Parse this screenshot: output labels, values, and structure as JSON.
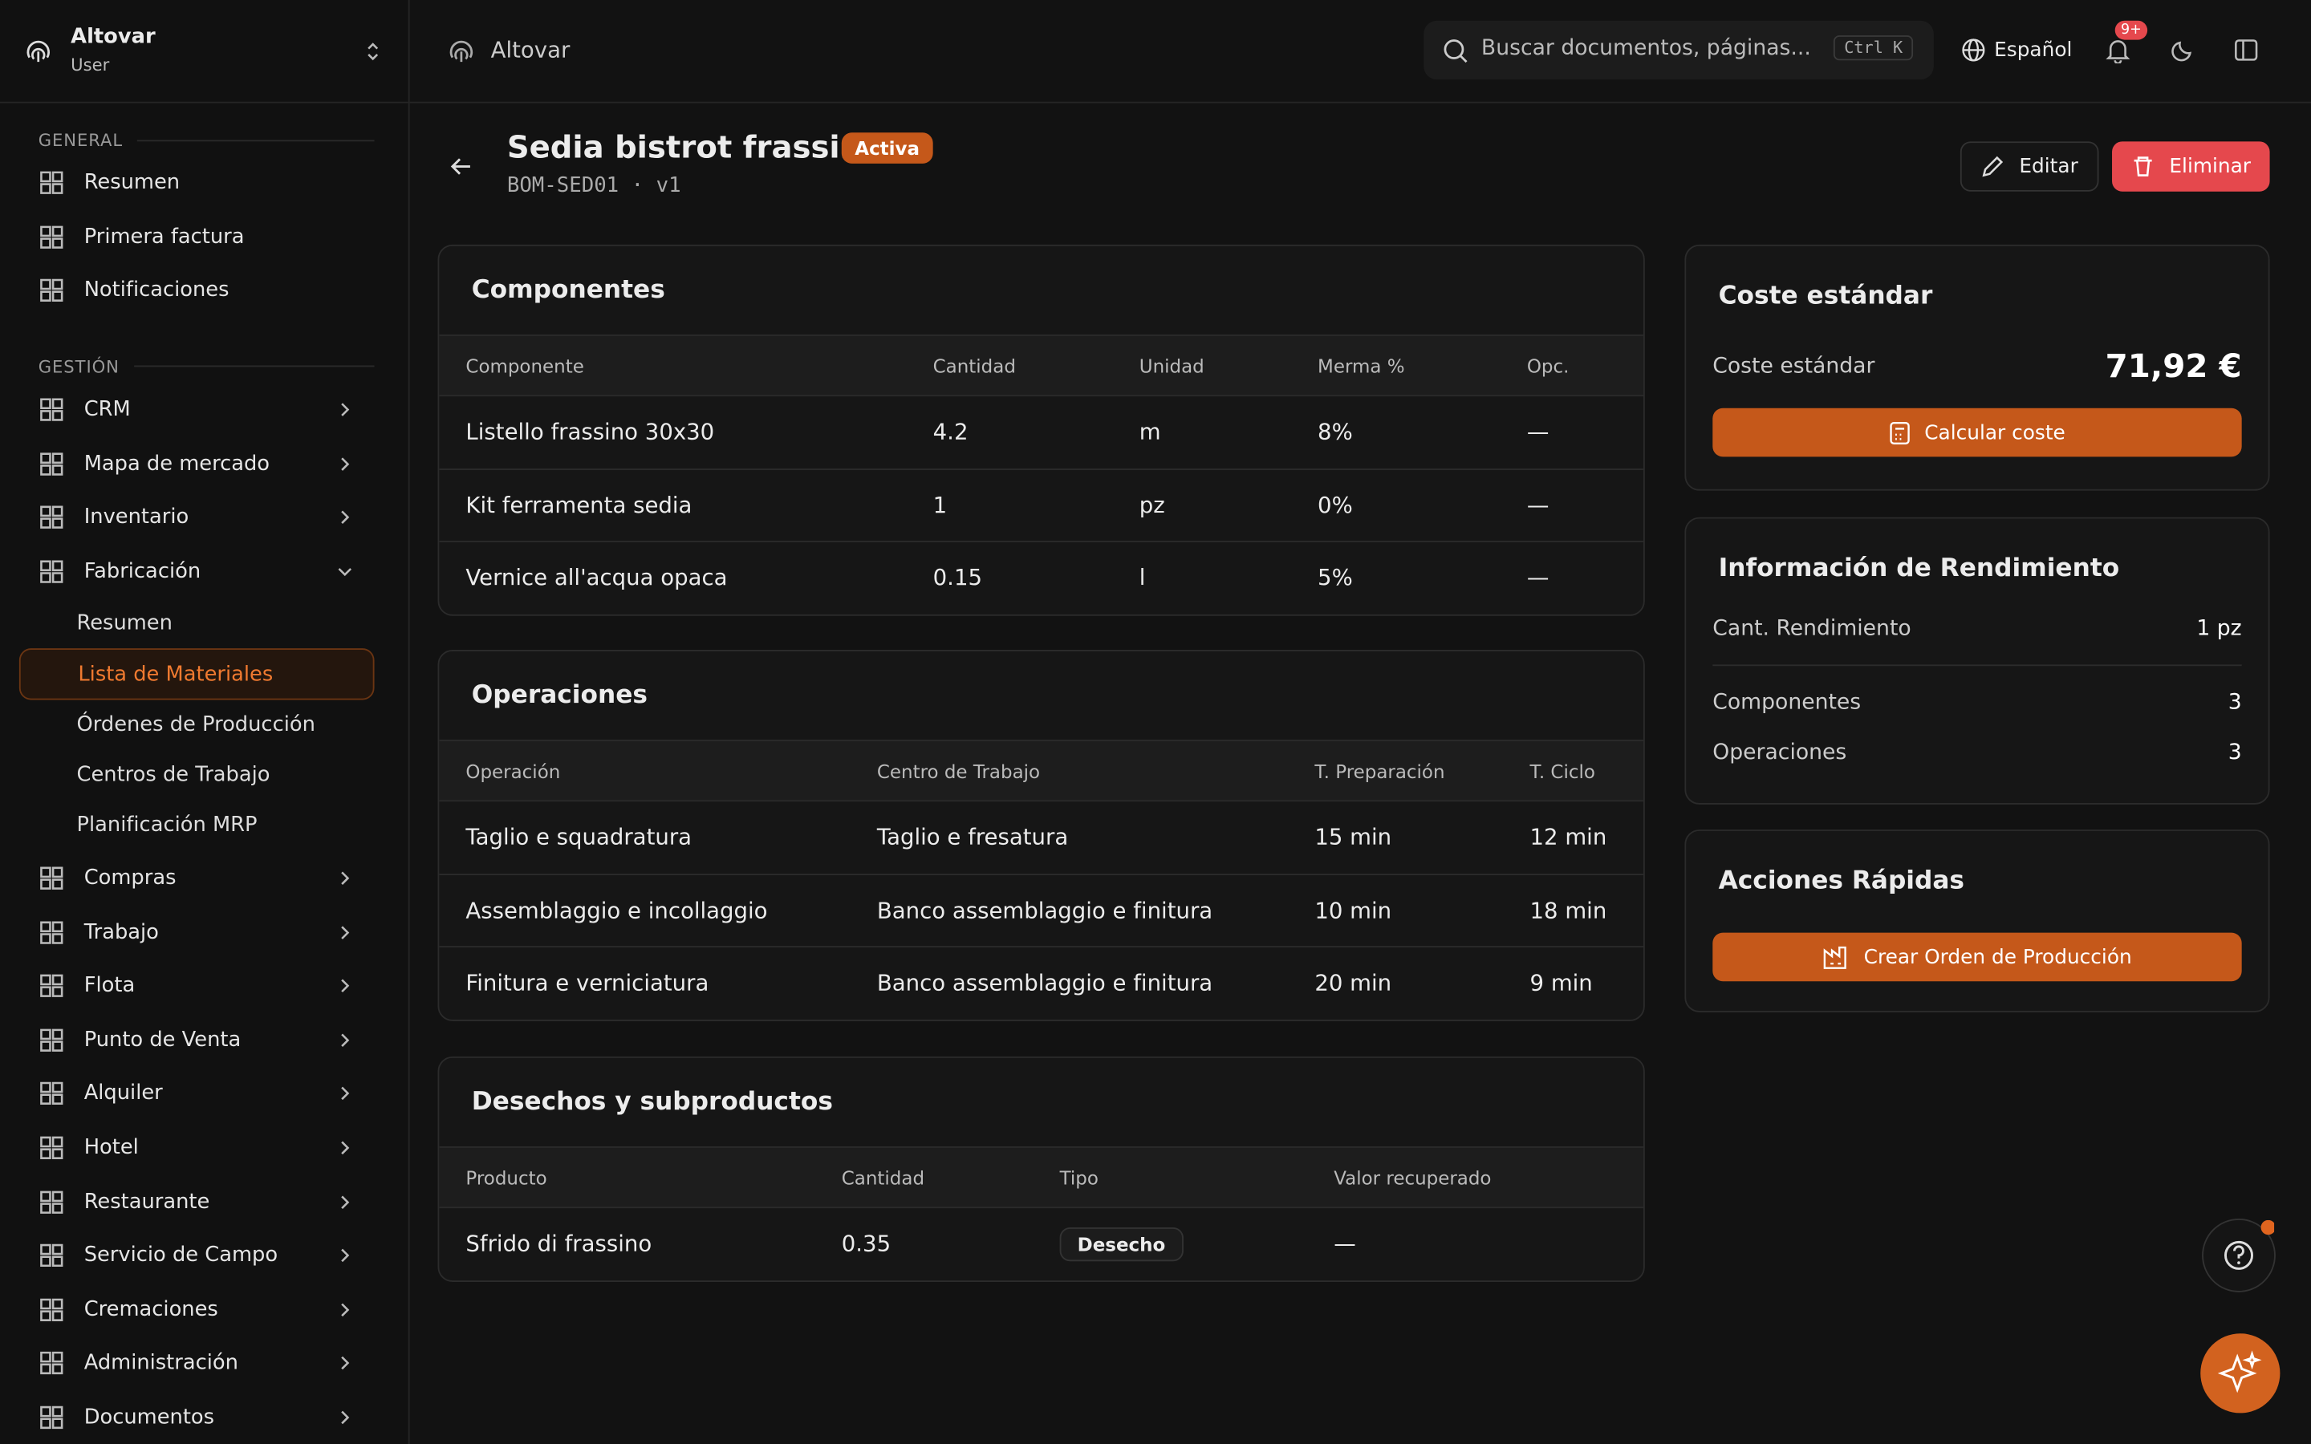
{
  "sidebar": {
    "org": "Altovar",
    "role": "User",
    "sections": [
      {
        "title": "GENERAL",
        "items": [
          {
            "label": "Resumen"
          },
          {
            "label": "Primera factura"
          },
          {
            "label": "Notificaciones"
          }
        ]
      },
      {
        "title": "GESTIÓN",
        "items": [
          {
            "label": "CRM"
          },
          {
            "label": "Mapa de mercado"
          },
          {
            "label": "Inventario"
          },
          {
            "label": "Fabricación",
            "children": [
              "Resumen",
              "Lista de Materiales",
              "Órdenes de Producción",
              "Centros de Trabajo",
              "Planificación MRP"
            ],
            "active_child": 1
          },
          {
            "label": "Compras"
          },
          {
            "label": "Trabajo"
          },
          {
            "label": "Flota"
          },
          {
            "label": "Punto de Venta"
          },
          {
            "label": "Alquiler"
          },
          {
            "label": "Hotel"
          },
          {
            "label": "Restaurante"
          },
          {
            "label": "Servicio de Campo"
          },
          {
            "label": "Cremaciones"
          },
          {
            "label": "Administración"
          },
          {
            "label": "Documentos"
          }
        ]
      }
    ]
  },
  "header": {
    "breadcrumb": "Altovar",
    "search": "Buscar documentos, páginas...",
    "shortcut": "Ctrl K",
    "language": "Español",
    "badge": "9+"
  },
  "page": {
    "title": "Sedia bistrot frassino",
    "status": "Activa",
    "code": "BOM-SED01 · v1",
    "edit": "Editar",
    "delete": "Eliminar"
  },
  "tables": [
    {
      "title": "Componentes",
      "columns": [
        "Componente",
        "Cantidad",
        "Unidad",
        "Merma %",
        "Opc."
      ],
      "rows": [
        [
          "Listello frassino 30x30",
          "4.2",
          "m",
          "8%",
          "—"
        ],
        [
          "Kit ferramenta sedia",
          "1",
          "pz",
          "0%",
          "—"
        ],
        [
          "Vernice all'acqua opaca",
          "0.15",
          "l",
          "5%",
          "—"
        ]
      ]
    },
    {
      "title": "Operaciones",
      "columns": [
        "Operación",
        "Centro de Trabajo",
        "T. Preparación",
        "T. Ciclo"
      ],
      "rows": [
        [
          "Taglio e squadratura",
          "Taglio e fresatura",
          "15 min",
          "12 min"
        ],
        [
          "Assemblaggio e incollaggio",
          "Banco assemblaggio e finitura",
          "10 min",
          "18 min"
        ],
        [
          "Finitura e verniciatura",
          "Banco assemblaggio e finitura",
          "20 min",
          "9 min"
        ]
      ]
    },
    {
      "title": "Desechos y subproductos",
      "columns": [
        "Producto",
        "Cantidad",
        "Tipo",
        "Valor recuperado"
      ],
      "rows": [
        [
          "Sfrido di frassino",
          "0.35",
          "Desecho",
          "—"
        ]
      ]
    }
  ],
  "cost": {
    "title": "Coste estándar",
    "label": "Coste estándar",
    "value": "71,92 €",
    "button": "Calcular coste"
  },
  "yield": {
    "title": "Información de Rendimiento",
    "rows": [
      [
        "Cant. Rendimiento",
        "1 pz"
      ],
      [
        "Componentes",
        "3"
      ],
      [
        "Operaciones",
        "3"
      ]
    ]
  },
  "quick": {
    "title": "Acciones Rápidas",
    "button": "Crear Orden de Producción"
  }
}
